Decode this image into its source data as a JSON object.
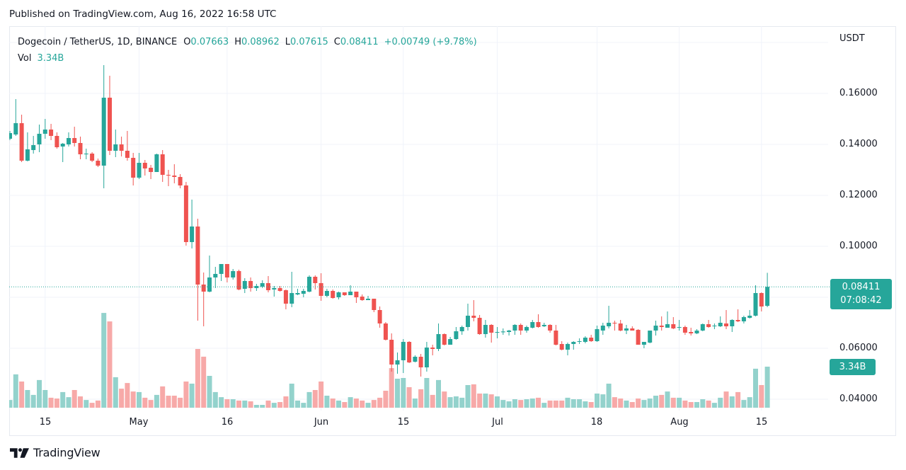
{
  "published": "Published on TradingView.com, Aug 16, 2022 16:58 UTC",
  "legend": {
    "symbol": "Dogecoin / TetherUS, 1D, BINANCE",
    "open_label": "O",
    "open": "0.07663",
    "high_label": "H",
    "high": "0.08962",
    "low_label": "L",
    "low": "0.07615",
    "close_label": "C",
    "close": "0.08411",
    "change": "+0.00749 (+9.78%)",
    "volume_label": "Vol",
    "volume": "3.34B"
  },
  "price_axis": {
    "currency": "USDT",
    "labels": [
      "0.16000",
      "0.14000",
      "0.12000",
      "0.10000",
      "0.06000",
      "0.04000"
    ],
    "last_price": "0.08411",
    "countdown": "07:08:42",
    "volume_badge": "3.34B"
  },
  "time_axis": {
    "labels": [
      "15",
      "May",
      "16",
      "Jun",
      "15",
      "Jul",
      "18",
      "Aug",
      "15"
    ]
  },
  "footer": {
    "brand": "TradingView",
    "logo_icon": "tradingview-logo-icon"
  },
  "colors": {
    "up": "#26a69a",
    "down": "#ef5350",
    "up_volume": "#93d2cc",
    "down_volume": "#f7a9a8",
    "grid": "#f0f3fa",
    "text": "#131722",
    "frame": "#e6e9f0"
  },
  "chart_data": {
    "type": "candlestick",
    "title": "Dogecoin / TetherUS, 1D, BINANCE",
    "xlabel": "",
    "ylabel": "USDT",
    "ylim": [
      0.03556,
      0.18639
    ],
    "yticks": [
      0.04,
      0.06,
      0.08,
      0.1,
      0.12,
      0.14,
      0.16,
      0.18
    ],
    "grid": true,
    "legend_position": "top-left",
    "last_price": 0.08411,
    "xticks": [
      {
        "date": "2022-04-15",
        "label": "15"
      },
      {
        "date": "2022-05-01",
        "label": "May"
      },
      {
        "date": "2022-05-16",
        "label": "16"
      },
      {
        "date": "2022-06-01",
        "label": "Jun"
      },
      {
        "date": "2022-06-15",
        "label": "15"
      },
      {
        "date": "2022-07-01",
        "label": "Jul"
      },
      {
        "date": "2022-07-18",
        "label": "18"
      },
      {
        "date": "2022-08-01",
        "label": "Aug"
      },
      {
        "date": "2022-08-15",
        "label": "15"
      }
    ],
    "x": [
      "2022-04-09",
      "2022-04-10",
      "2022-04-11",
      "2022-04-12",
      "2022-04-13",
      "2022-04-14",
      "2022-04-15",
      "2022-04-16",
      "2022-04-17",
      "2022-04-18",
      "2022-04-19",
      "2022-04-20",
      "2022-04-21",
      "2022-04-22",
      "2022-04-23",
      "2022-04-24",
      "2022-04-25",
      "2022-04-26",
      "2022-04-27",
      "2022-04-28",
      "2022-04-29",
      "2022-04-30",
      "2022-05-01",
      "2022-05-02",
      "2022-05-03",
      "2022-05-04",
      "2022-05-05",
      "2022-05-06",
      "2022-05-07",
      "2022-05-08",
      "2022-05-09",
      "2022-05-10",
      "2022-05-11",
      "2022-05-12",
      "2022-05-13",
      "2022-05-14",
      "2022-05-15",
      "2022-05-16",
      "2022-05-17",
      "2022-05-18",
      "2022-05-19",
      "2022-05-20",
      "2022-05-21",
      "2022-05-22",
      "2022-05-23",
      "2022-05-24",
      "2022-05-25",
      "2022-05-26",
      "2022-05-27",
      "2022-05-28",
      "2022-05-29",
      "2022-05-30",
      "2022-05-31",
      "2022-06-01",
      "2022-06-02",
      "2022-06-03",
      "2022-06-04",
      "2022-06-05",
      "2022-06-06",
      "2022-06-07",
      "2022-06-08",
      "2022-06-09",
      "2022-06-10",
      "2022-06-11",
      "2022-06-12",
      "2022-06-13",
      "2022-06-14",
      "2022-06-15",
      "2022-06-16",
      "2022-06-17",
      "2022-06-18",
      "2022-06-19",
      "2022-06-20",
      "2022-06-21",
      "2022-06-22",
      "2022-06-23",
      "2022-06-24",
      "2022-06-25",
      "2022-06-26",
      "2022-06-27",
      "2022-06-28",
      "2022-06-29",
      "2022-06-30",
      "2022-07-01",
      "2022-07-02",
      "2022-07-03",
      "2022-07-04",
      "2022-07-05",
      "2022-07-06",
      "2022-07-07",
      "2022-07-08",
      "2022-07-09",
      "2022-07-10",
      "2022-07-11",
      "2022-07-12",
      "2022-07-13",
      "2022-07-14",
      "2022-07-15",
      "2022-07-16",
      "2022-07-17",
      "2022-07-18",
      "2022-07-19",
      "2022-07-20",
      "2022-07-21",
      "2022-07-22",
      "2022-07-23",
      "2022-07-24",
      "2022-07-25",
      "2022-07-26",
      "2022-07-27",
      "2022-07-28",
      "2022-07-29",
      "2022-07-30",
      "2022-07-31",
      "2022-08-01",
      "2022-08-02",
      "2022-08-03",
      "2022-08-04",
      "2022-08-05",
      "2022-08-06",
      "2022-08-07",
      "2022-08-08",
      "2022-08-09",
      "2022-08-10",
      "2022-08-11",
      "2022-08-12",
      "2022-08-13",
      "2022-08-14",
      "2022-08-15",
      "2022-08-16"
    ],
    "series": [
      {
        "name": "Dogecoin / TetherUS",
        "type": "candlestick",
        "open": [
          0.14222,
          0.14389,
          0.14833,
          0.13361,
          0.13778,
          0.14,
          0.14417,
          0.14583,
          0.14333,
          0.13917,
          0.14,
          0.1425,
          0.14056,
          0.13611,
          0.13639,
          0.13361,
          0.13167,
          0.15833,
          0.1375,
          0.14,
          0.1375,
          0.13472,
          0.12694,
          0.13278,
          0.13083,
          0.12917,
          0.13611,
          0.12806,
          0.12778,
          0.12722,
          0.12389,
          0.10167,
          0.10778,
          0.085,
          0.08222,
          0.08778,
          0.08917,
          0.09306,
          0.08778,
          0.09028,
          0.08333,
          0.08639,
          0.08361,
          0.08417,
          0.08556,
          0.08306,
          0.08361,
          0.08278,
          0.0775,
          0.08111,
          0.08139,
          0.08222,
          0.08806,
          0.08556,
          0.08056,
          0.0825,
          0.08,
          0.08194,
          0.08083,
          0.08222,
          0.08028,
          0.07889,
          0.07944,
          0.075,
          0.06972,
          0.06333,
          0.05361,
          0.05528,
          0.0625,
          0.05472,
          0.05667,
          0.0525,
          0.06028,
          0.05972,
          0.06556,
          0.06139,
          0.06361,
          0.06667,
          0.06833,
          0.07278,
          0.07194,
          0.06556,
          0.06917,
          0.06611,
          0.0663,
          0.06639,
          0.06694,
          0.06917,
          0.06694,
          0.06806,
          0.07028,
          0.06861,
          0.06917,
          0.06694,
          0.06167,
          0.05944,
          0.06167,
          0.0625,
          0.0625,
          0.06417,
          0.06278,
          0.06694,
          0.06861,
          0.07,
          0.06972,
          0.06694,
          0.06778,
          0.06722,
          0.06139,
          0.06222,
          0.06694,
          0.06889,
          0.06806,
          0.06944,
          0.06806,
          0.06833,
          0.06639,
          0.06583,
          0.06694,
          0.06944,
          0.06861,
          0.06861,
          0.06972,
          0.06861,
          0.07111,
          0.07056,
          0.07194,
          0.07278,
          0.08167,
          0.07663
        ],
        "high": [
          0.14528,
          0.15778,
          0.15167,
          0.14472,
          0.14333,
          0.14778,
          0.15,
          0.14806,
          0.14472,
          0.14056,
          0.14472,
          0.14694,
          0.14306,
          0.13833,
          0.13694,
          0.13444,
          0.17111,
          0.16694,
          0.14583,
          0.14306,
          0.14528,
          0.13667,
          0.13667,
          0.13389,
          0.13194,
          0.13639,
          0.13778,
          0.13,
          0.13222,
          0.12833,
          0.12528,
          0.11833,
          0.11083,
          0.08972,
          0.09639,
          0.09194,
          0.09306,
          0.09306,
          0.09111,
          0.09083,
          0.0875,
          0.08778,
          0.08528,
          0.08667,
          0.08833,
          0.08444,
          0.08444,
          0.08306,
          0.09,
          0.08333,
          0.08333,
          0.08861,
          0.08861,
          0.08944,
          0.08333,
          0.08306,
          0.08222,
          0.08194,
          0.08472,
          0.08222,
          0.08111,
          0.08056,
          0.07944,
          0.07639,
          0.07028,
          0.06583,
          0.05833,
          0.06361,
          0.06278,
          0.05722,
          0.05778,
          0.0625,
          0.06139,
          0.06972,
          0.06583,
          0.06444,
          0.06833,
          0.06889,
          0.0775,
          0.07889,
          0.07306,
          0.07111,
          0.06944,
          0.06833,
          0.06778,
          0.06722,
          0.06944,
          0.06972,
          0.06889,
          0.07111,
          0.07333,
          0.07,
          0.06944,
          0.06917,
          0.06278,
          0.06222,
          0.06278,
          0.06389,
          0.06472,
          0.06528,
          0.06889,
          0.07,
          0.07667,
          0.07083,
          0.07111,
          0.06917,
          0.06861,
          0.0675,
          0.0625,
          0.06694,
          0.07083,
          0.0725,
          0.07444,
          0.07222,
          0.07111,
          0.06889,
          0.06806,
          0.0675,
          0.06972,
          0.07111,
          0.06972,
          0.0725,
          0.075,
          0.07139,
          0.07528,
          0.07278,
          0.075,
          0.08472,
          0.08194,
          0.08962
        ],
        "low": [
          0.14167,
          0.14333,
          0.13306,
          0.13333,
          0.13639,
          0.13694,
          0.14222,
          0.14167,
          0.13833,
          0.13306,
          0.13917,
          0.13917,
          0.13417,
          0.13417,
          0.13306,
          0.13111,
          0.12278,
          0.13583,
          0.135,
          0.13528,
          0.13361,
          0.12389,
          0.12639,
          0.12778,
          0.12639,
          0.12917,
          0.12528,
          0.12361,
          0.12472,
          0.12278,
          0.10028,
          0.09917,
          0.07083,
          0.06861,
          0.08194,
          0.08361,
          0.08639,
          0.08583,
          0.08694,
          0.08278,
          0.08167,
          0.08222,
          0.0825,
          0.08361,
          0.08194,
          0.08028,
          0.08222,
          0.07528,
          0.07611,
          0.08083,
          0.08,
          0.08194,
          0.08306,
          0.07861,
          0.08,
          0.07944,
          0.07917,
          0.08056,
          0.08083,
          0.07778,
          0.07861,
          0.07889,
          0.07417,
          0.06806,
          0.06306,
          0.05083,
          0.05,
          0.05028,
          0.05417,
          0.05444,
          0.04889,
          0.05083,
          0.05722,
          0.05889,
          0.06111,
          0.06139,
          0.06333,
          0.06528,
          0.06694,
          0.07056,
          0.06528,
          0.06417,
          0.06222,
          0.06389,
          0.06528,
          0.065,
          0.06528,
          0.06528,
          0.06611,
          0.06778,
          0.06806,
          0.06833,
          0.06611,
          0.06111,
          0.05917,
          0.05722,
          0.05944,
          0.06167,
          0.06194,
          0.0625,
          0.0625,
          0.06528,
          0.06778,
          0.06694,
          0.06667,
          0.06556,
          0.06694,
          0.06139,
          0.06,
          0.06194,
          0.065,
          0.06694,
          0.06806,
          0.0675,
          0.06694,
          0.06528,
          0.065,
          0.06556,
          0.06667,
          0.06806,
          0.0675,
          0.06833,
          0.0675,
          0.06639,
          0.07028,
          0.06972,
          0.07167,
          0.0725,
          0.07444,
          0.07615
        ],
        "close": [
          0.14444,
          0.14833,
          0.13361,
          0.13806,
          0.13972,
          0.14417,
          0.14583,
          0.14333,
          0.13889,
          0.14028,
          0.1425,
          0.14056,
          0.13611,
          0.13639,
          0.13361,
          0.13167,
          0.15833,
          0.1375,
          0.14,
          0.1375,
          0.13472,
          0.12694,
          0.13278,
          0.13056,
          0.12917,
          0.13611,
          0.12806,
          0.12778,
          0.12722,
          0.12389,
          0.10167,
          0.10778,
          0.085,
          0.08222,
          0.08778,
          0.08917,
          0.09306,
          0.08778,
          0.09028,
          0.08306,
          0.08639,
          0.08361,
          0.08444,
          0.08556,
          0.08278,
          0.08361,
          0.0825,
          0.0775,
          0.08167,
          0.08167,
          0.0825,
          0.08806,
          0.08556,
          0.08056,
          0.0825,
          0.07972,
          0.08194,
          0.08083,
          0.08222,
          0.08,
          0.07889,
          0.07944,
          0.075,
          0.06972,
          0.06333,
          0.05361,
          0.05528,
          0.0625,
          0.05444,
          0.05667,
          0.0525,
          0.06028,
          0.05972,
          0.06556,
          0.06139,
          0.06361,
          0.06667,
          0.06833,
          0.07278,
          0.07194,
          0.06556,
          0.06917,
          0.06611,
          0.06639,
          0.0666,
          0.06694,
          0.06917,
          0.06694,
          0.06833,
          0.07028,
          0.06833,
          0.06917,
          0.06694,
          0.06139,
          0.05944,
          0.06167,
          0.0625,
          0.06278,
          0.06417,
          0.06278,
          0.0675,
          0.06889,
          0.07,
          0.06972,
          0.06694,
          0.06778,
          0.06694,
          0.06139,
          0.0625,
          0.06694,
          0.06889,
          0.06833,
          0.06944,
          0.06778,
          0.06833,
          0.06611,
          0.06583,
          0.06694,
          0.06944,
          0.06833,
          0.06889,
          0.07,
          0.06861,
          0.07111,
          0.07056,
          0.07222,
          0.07278,
          0.08167,
          0.07639,
          0.08411
        ]
      },
      {
        "name": "Vol",
        "type": "bar",
        "unit": "B",
        "values": [
          0.63,
          2.71,
          2.13,
          1.44,
          1.04,
          2.25,
          1.44,
          0.81,
          0.75,
          1.27,
          0.86,
          1.44,
          0.92,
          0.63,
          0.4,
          0.58,
          7.71,
          7.02,
          2.48,
          1.55,
          2.01,
          1.32,
          1.27,
          0.81,
          0.63,
          1.04,
          1.73,
          0.98,
          0.98,
          0.81,
          2.13,
          1.96,
          4.78,
          4.15,
          2.59,
          1.27,
          0.86,
          0.69,
          0.69,
          0.58,
          0.58,
          0.52,
          0.23,
          0.23,
          0.58,
          0.4,
          0.46,
          0.92,
          1.96,
          0.58,
          0.4,
          1.27,
          1.44,
          2.13,
          0.98,
          0.75,
          0.58,
          0.46,
          0.86,
          0.75,
          0.58,
          0.4,
          0.63,
          0.81,
          1.38,
          3.22,
          2.36,
          2.42,
          1.67,
          0.75,
          1.5,
          2.42,
          1.04,
          2.25,
          1.32,
          0.86,
          0.92,
          0.81,
          1.84,
          1.9,
          1.15,
          1.15,
          1.09,
          0.92,
          0.63,
          0.52,
          0.69,
          0.63,
          0.69,
          0.75,
          0.81,
          0.4,
          0.58,
          0.58,
          0.58,
          0.81,
          0.69,
          0.69,
          0.52,
          0.46,
          1.15,
          1.09,
          1.96,
          0.86,
          0.75,
          0.58,
          0.46,
          0.75,
          0.63,
          0.75,
          0.98,
          1.04,
          1.32,
          0.81,
          0.81,
          0.58,
          0.46,
          0.46,
          0.69,
          0.58,
          0.4,
          0.81,
          1.32,
          0.92,
          1.27,
          0.63,
          0.86,
          3.17,
          1.84,
          3.34
        ]
      }
    ]
  }
}
